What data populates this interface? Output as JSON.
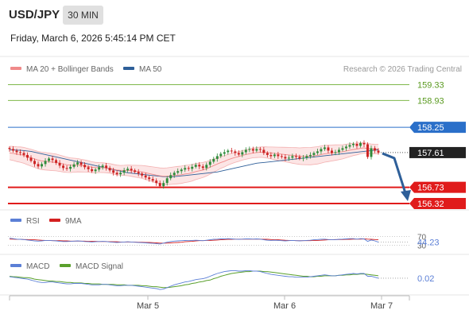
{
  "header": {
    "pair": "USD/JPY",
    "timeframe": "30 MIN",
    "datetime": "Friday, March 6, 2026 5:45:14 PM CET"
  },
  "legend": {
    "ma20_bb": "MA 20 + Bollinger Bands",
    "ma50": "MA 50",
    "credit": "Research © 2026 Trading Central",
    "rsi": "RSI",
    "rsi_ma": "9MA",
    "macd": "MACD",
    "macd_signal": "MACD Signal"
  },
  "colors": {
    "ma20_bb": "#f08a8a",
    "ma50": "#2e5f99",
    "candle_up": "#2e8b3a",
    "candle_down": "#cc2222",
    "resistance": "#7fb84a",
    "pivot": "#2a6fc9",
    "support": "#e01b1b",
    "last_price": "#222222",
    "bb_fill": "#fbdcdc",
    "arrow": "#2e5f99",
    "rsi_line": "#5b7fd6",
    "rsi_ma_line": "#d42020",
    "macd_line": "#5b7fd6",
    "macd_signal_line": "#5aa02c"
  },
  "chart_data": [
    {
      "type": "candlestick",
      "title": "USD/JPY 30 MIN",
      "x_ticks": [
        "Mar 5",
        "Mar 6",
        "Mar 7"
      ],
      "ylim": [
        156.2,
        159.5
      ],
      "levels": [
        {
          "value": 159.33,
          "label": "159.33",
          "kind": "resistance"
        },
        {
          "value": 158.93,
          "label": "158.93",
          "kind": "resistance"
        },
        {
          "value": 158.25,
          "label": "158.25",
          "kind": "pivot"
        },
        {
          "value": 157.61,
          "label": "157.61",
          "kind": "last_price"
        },
        {
          "value": 156.73,
          "label": "156.73",
          "kind": "support"
        },
        {
          "value": 156.32,
          "label": "156.32",
          "kind": "support"
        }
      ],
      "forecast_arrow": {
        "from": 157.61,
        "to": 156.32
      },
      "closes": [
        157.7,
        157.66,
        157.62,
        157.6,
        157.55,
        157.48,
        157.4,
        157.32,
        157.26,
        157.32,
        157.4,
        157.46,
        157.42,
        157.35,
        157.28,
        157.22,
        157.2,
        157.25,
        157.31,
        157.36,
        157.3,
        157.24,
        157.19,
        157.14,
        157.18,
        157.24,
        157.28,
        157.22,
        157.16,
        157.1,
        157.06,
        157.1,
        157.16,
        157.2,
        157.16,
        157.12,
        157.08,
        157.03,
        156.98,
        156.94,
        156.9,
        156.84,
        156.76,
        156.84,
        156.96,
        157.04,
        157.1,
        157.14,
        157.18,
        157.22,
        157.2,
        157.25,
        157.3,
        157.26,
        157.22,
        157.3,
        157.38,
        157.45,
        157.52,
        157.58,
        157.62,
        157.66,
        157.64,
        157.6,
        157.56,
        157.62,
        157.68,
        157.7,
        157.66,
        157.7,
        157.68,
        157.6,
        157.55,
        157.52,
        157.56,
        157.52,
        157.5,
        157.46,
        157.48,
        157.52,
        157.5,
        157.46,
        157.48,
        157.52,
        157.55,
        157.6,
        157.64,
        157.7,
        157.74,
        157.66,
        157.6,
        157.62,
        157.68,
        157.72,
        157.76,
        157.8,
        157.83,
        157.78,
        157.85,
        157.82,
        157.5,
        157.72,
        157.66,
        157.61
      ],
      "ma20": [
        157.6,
        157.59,
        157.57,
        157.56,
        157.54,
        157.51,
        157.48,
        157.45,
        157.42,
        157.4,
        157.39,
        157.38,
        157.37,
        157.36,
        157.34,
        157.32,
        157.3,
        157.29,
        157.29,
        157.29,
        157.28,
        157.27,
        157.26,
        157.24,
        157.23,
        157.23,
        157.23,
        157.22,
        157.21,
        157.19,
        157.17,
        157.16,
        157.16,
        157.16,
        157.15,
        157.14,
        157.13,
        157.12,
        157.1,
        157.08,
        157.06,
        157.04,
        157.02,
        157.01,
        157.01,
        157.02,
        157.03,
        157.04,
        157.05,
        157.07,
        157.08,
        157.1,
        157.13,
        157.15,
        157.17,
        157.2,
        157.24,
        157.28,
        157.32,
        157.36,
        157.39,
        157.43,
        157.46,
        157.49,
        157.51,
        157.54,
        157.56,
        157.58,
        157.6,
        157.61,
        157.62,
        157.62,
        157.61,
        157.6,
        157.59,
        157.58,
        157.57,
        157.56,
        157.55,
        157.54,
        157.53,
        157.52,
        157.52,
        157.52,
        157.52,
        157.53,
        157.54,
        157.56,
        157.58,
        157.59,
        157.6,
        157.61,
        157.62,
        157.63,
        157.65,
        157.67,
        157.69,
        157.7,
        157.72,
        157.73,
        157.71,
        157.7,
        157.7,
        157.7
      ],
      "ma50": [
        157.68,
        157.68,
        157.67,
        157.67,
        157.66,
        157.65,
        157.64,
        157.62,
        157.6,
        157.58,
        157.56,
        157.54,
        157.52,
        157.5,
        157.48,
        157.46,
        157.44,
        157.42,
        157.4,
        157.38,
        157.36,
        157.34,
        157.32,
        157.3,
        157.28,
        157.26,
        157.24,
        157.22,
        157.2,
        157.18,
        157.16,
        157.14,
        157.12,
        157.1,
        157.09,
        157.08,
        157.07,
        157.06,
        157.05,
        157.04,
        157.03,
        157.02,
        157.01,
        157.0,
        157.0,
        157.0,
        157.0,
        157.01,
        157.02,
        157.03,
        157.04,
        157.05,
        157.06,
        157.07,
        157.08,
        157.09,
        157.1,
        157.11,
        157.12,
        157.14,
        157.16,
        157.18,
        157.2,
        157.22,
        157.24,
        157.26,
        157.28,
        157.3,
        157.32,
        157.34,
        157.35,
        157.36,
        157.37,
        157.38,
        157.39,
        157.4,
        157.41,
        157.42,
        157.43,
        157.44,
        157.45,
        157.46,
        157.47,
        157.48,
        157.49,
        157.5,
        157.51,
        157.52,
        157.53,
        157.54,
        157.55,
        157.56,
        157.57,
        157.58,
        157.59,
        157.6,
        157.61,
        157.62,
        157.63,
        157.64,
        157.65,
        157.66,
        157.67,
        157.68
      ]
    },
    {
      "type": "line",
      "title": "RSI",
      "ticks": [
        "70",
        "30"
      ],
      "last_value": "44.23",
      "rsi": [
        62,
        60,
        58,
        57,
        56,
        54,
        52,
        50,
        49,
        50,
        52,
        52,
        51,
        50,
        48,
        47,
        47,
        48,
        49,
        50,
        49,
        47,
        46,
        45,
        46,
        47,
        48,
        47,
        45,
        44,
        43,
        44,
        45,
        46,
        45,
        44,
        43,
        42,
        41,
        40,
        39,
        38,
        36,
        40,
        44,
        47,
        49,
        50,
        51,
        52,
        51,
        52,
        53,
        52,
        51,
        53,
        55,
        57,
        58,
        59,
        59,
        60,
        59,
        58,
        57,
        58,
        59,
        59,
        58,
        59,
        58,
        55,
        53,
        52,
        53,
        52,
        51,
        50,
        51,
        52,
        51,
        50,
        51,
        52,
        53,
        55,
        56,
        57,
        58,
        56,
        55,
        55,
        57,
        58,
        59,
        60,
        60,
        58,
        60,
        59,
        48,
        54,
        50,
        44.23
      ],
      "rsi_ma": [
        58,
        58,
        57,
        57,
        56,
        56,
        55,
        55,
        54,
        53,
        52,
        52,
        51,
        51,
        51,
        50,
        50,
        49,
        49,
        49,
        49,
        49,
        48,
        48,
        48,
        47,
        47,
        47,
        46,
        46,
        46,
        45,
        45,
        45,
        45,
        45,
        44,
        44,
        43,
        43,
        42,
        41,
        40,
        40,
        40,
        41,
        42,
        43,
        44,
        46,
        47,
        48,
        50,
        51,
        51,
        52,
        52,
        53,
        54,
        55,
        56,
        57,
        57,
        58,
        58,
        58,
        58,
        58,
        58,
        58,
        58,
        57,
        57,
        56,
        55,
        55,
        54,
        53,
        52,
        52,
        51,
        51,
        51,
        51,
        51,
        52,
        52,
        53,
        54,
        55,
        55,
        56,
        56,
        56,
        57,
        57,
        58,
        58,
        58,
        59,
        58,
        57,
        56,
        55
      ]
    },
    {
      "type": "line",
      "title": "MACD",
      "last_value": "0.02",
      "macd": [
        0.05,
        0.04,
        0.03,
        0.02,
        0.01,
        0.0,
        -0.02,
        -0.04,
        -0.06,
        -0.07,
        -0.07,
        -0.06,
        -0.06,
        -0.07,
        -0.08,
        -0.09,
        -0.1,
        -0.1,
        -0.09,
        -0.09,
        -0.09,
        -0.1,
        -0.11,
        -0.12,
        -0.12,
        -0.12,
        -0.11,
        -0.11,
        -0.12,
        -0.13,
        -0.14,
        -0.14,
        -0.13,
        -0.13,
        -0.13,
        -0.14,
        -0.15,
        -0.16,
        -0.17,
        -0.18,
        -0.19,
        -0.2,
        -0.22,
        -0.21,
        -0.18,
        -0.15,
        -0.12,
        -0.1,
        -0.08,
        -0.06,
        -0.05,
        -0.03,
        -0.01,
        0.0,
        0.01,
        0.03,
        0.06,
        0.09,
        0.12,
        0.14,
        0.16,
        0.17,
        0.18,
        0.18,
        0.17,
        0.17,
        0.18,
        0.18,
        0.17,
        0.17,
        0.16,
        0.14,
        0.12,
        0.1,
        0.09,
        0.08,
        0.07,
        0.06,
        0.05,
        0.05,
        0.04,
        0.04,
        0.04,
        0.04,
        0.05,
        0.06,
        0.07,
        0.08,
        0.09,
        0.08,
        0.07,
        0.07,
        0.08,
        0.09,
        0.1,
        0.11,
        0.12,
        0.11,
        0.12,
        0.12,
        0.06,
        0.06,
        0.04,
        0.02
      ],
      "signal": [
        0.06,
        0.05,
        0.05,
        0.04,
        0.03,
        0.03,
        0.02,
        0.0,
        -0.01,
        -0.02,
        -0.03,
        -0.04,
        -0.04,
        -0.05,
        -0.05,
        -0.06,
        -0.07,
        -0.07,
        -0.08,
        -0.08,
        -0.08,
        -0.09,
        -0.09,
        -0.1,
        -0.1,
        -0.1,
        -0.11,
        -0.11,
        -0.11,
        -0.11,
        -0.12,
        -0.12,
        -0.12,
        -0.13,
        -0.13,
        -0.13,
        -0.13,
        -0.14,
        -0.14,
        -0.15,
        -0.16,
        -0.16,
        -0.17,
        -0.18,
        -0.18,
        -0.17,
        -0.16,
        -0.15,
        -0.14,
        -0.12,
        -0.11,
        -0.09,
        -0.08,
        -0.06,
        -0.05,
        -0.03,
        -0.02,
        0.01,
        0.03,
        0.06,
        0.08,
        0.1,
        0.12,
        0.13,
        0.14,
        0.15,
        0.16,
        0.16,
        0.17,
        0.17,
        0.17,
        0.16,
        0.16,
        0.15,
        0.14,
        0.13,
        0.12,
        0.11,
        0.1,
        0.09,
        0.08,
        0.07,
        0.06,
        0.06,
        0.05,
        0.05,
        0.06,
        0.06,
        0.07,
        0.07,
        0.07,
        0.07,
        0.08,
        0.08,
        0.09,
        0.09,
        0.1,
        0.1,
        0.11,
        0.11,
        0.1,
        0.09,
        0.08,
        0.07
      ]
    }
  ]
}
